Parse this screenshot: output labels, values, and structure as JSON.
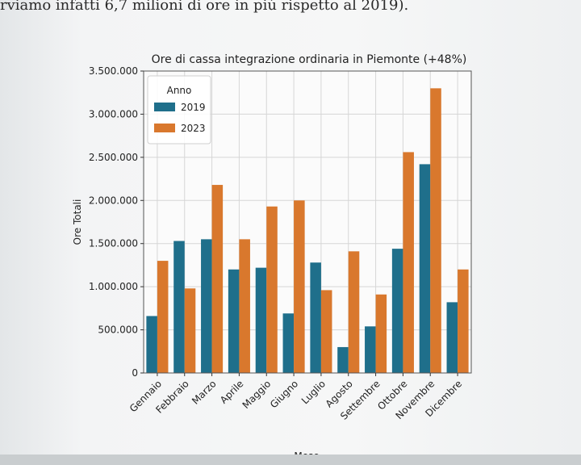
{
  "page": {
    "header_text": "rviamo infatti 6,7 milioni di ore in più rispetto al 2019)."
  },
  "colors": {
    "series_2019": "#1f6f8b",
    "series_2023": "#d9782d",
    "grid": "#d6d6d6",
    "axis": "#333333"
  },
  "chart_data": {
    "type": "bar",
    "title": "Ore di cassa integrazione ordinaria in Piemonte (+48%)",
    "xlabel": "Mese",
    "ylabel": "Ore Totali",
    "ylim": [
      0,
      3500000
    ],
    "yticks": [
      0,
      500000,
      1000000,
      1500000,
      2000000,
      2500000,
      3000000,
      3500000
    ],
    "ytick_labels": [
      "0",
      "500.000",
      "1.000.000",
      "1.500.000",
      "2.000.000",
      "2.500.000",
      "3.000.000",
      "3.500.000"
    ],
    "categories": [
      "Gennaio",
      "Febbraio",
      "Marzo",
      "Aprile",
      "Maggio",
      "Giugno",
      "Luglio",
      "Agosto",
      "Settembre",
      "Ottobre",
      "Novembre",
      "Dicembre"
    ],
    "legend": {
      "title": "Anno",
      "position": "top-left"
    },
    "grid": true,
    "series": [
      {
        "name": "2019",
        "color": "#1f6f8b",
        "values": [
          660000,
          1530000,
          1550000,
          1200000,
          1220000,
          690000,
          1280000,
          300000,
          540000,
          1440000,
          2420000,
          820000
        ]
      },
      {
        "name": "2023",
        "color": "#d9782d",
        "values": [
          1300000,
          980000,
          2180000,
          1550000,
          1930000,
          2000000,
          960000,
          1410000,
          910000,
          2560000,
          3300000,
          1200000
        ]
      }
    ]
  }
}
